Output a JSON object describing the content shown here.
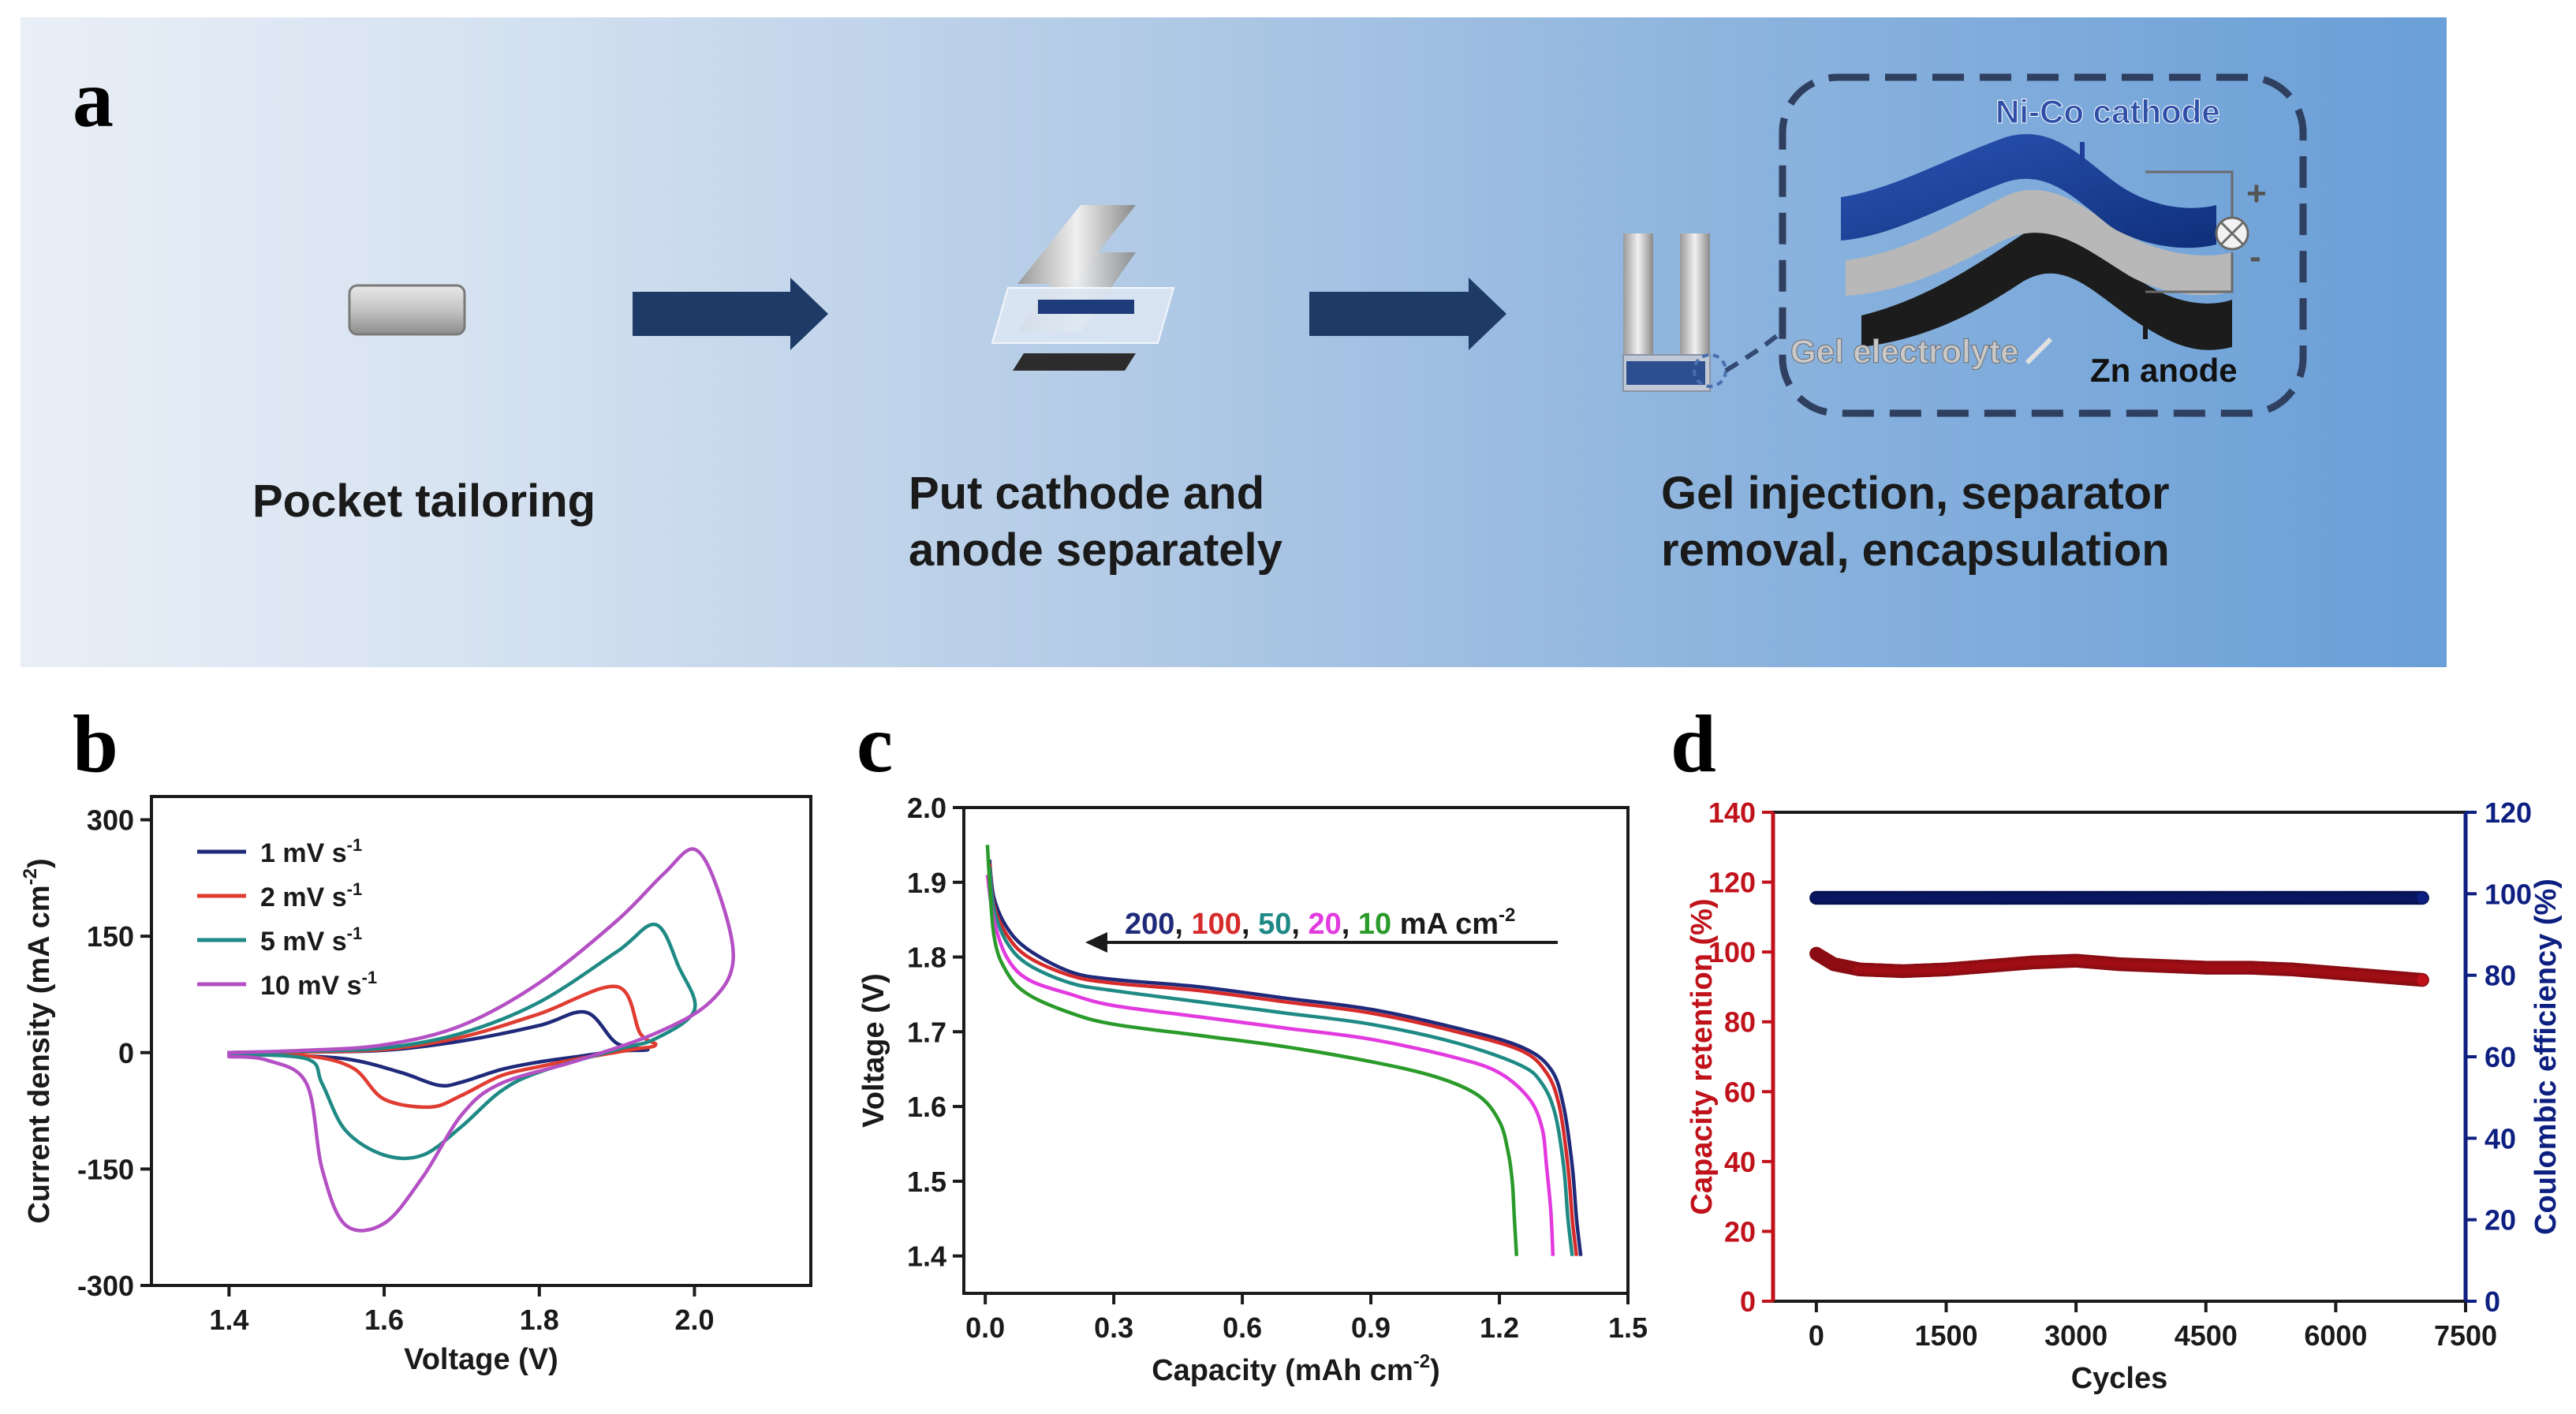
{
  "panels": {
    "a": "a",
    "b": "b",
    "c": "c",
    "d": "d"
  },
  "schematic": {
    "steps": [
      "Pocket tailoring",
      "Put cathode and",
      "anode separately",
      "Gel injection, separator",
      "removal, encapsulation"
    ],
    "labels": {
      "cathode": "Ni-Co cathode",
      "gel": "Gel electrolyte",
      "anode": "Zn anode",
      "plus": "+",
      "minus": "-"
    }
  },
  "chart_data": [
    {
      "id": "b",
      "type": "line",
      "xlabel": "Voltage (V)",
      "ylabel": "Current density (mA cm",
      "ylabel_sup": "-2",
      "ylabel_end": ")",
      "xlim": [
        1.3,
        2.15
      ],
      "ylim": [
        -300,
        330
      ],
      "xticks": [
        "1.4",
        "1.6",
        "1.8",
        "2.0"
      ],
      "xtick_values": [
        1.4,
        1.6,
        1.8,
        2.0
      ],
      "yticks": [
        "300",
        "150",
        "0",
        "-150",
        "-300"
      ],
      "ytick_values": [
        300,
        150,
        0,
        -150,
        -300
      ],
      "legend": {
        "position": "top-left"
      },
      "series": [
        {
          "name": "1 mV s",
          "sup": "-1",
          "color": "#1f2a7a",
          "x": [
            1.4,
            1.5,
            1.6,
            1.7,
            1.8,
            1.86,
            1.9,
            1.94,
            1.9,
            1.85,
            1.8,
            1.75,
            1.7,
            1.67,
            1.62,
            1.55,
            1.45,
            1.4
          ],
          "y": [
            0,
            1,
            3,
            15,
            35,
            52,
            12,
            4,
            2,
            -5,
            -12,
            -22,
            -38,
            -42,
            -25,
            -8,
            -2,
            0
          ]
        },
        {
          "name": "2 mV s",
          "sup": "-1",
          "color": "#e03c31",
          "x": [
            1.4,
            1.5,
            1.6,
            1.7,
            1.8,
            1.9,
            1.93,
            1.95,
            1.92,
            1.85,
            1.8,
            1.75,
            1.7,
            1.66,
            1.6,
            1.56,
            1.5,
            1.4
          ],
          "y": [
            0,
            1,
            4,
            20,
            50,
            85,
            25,
            10,
            4,
            -8,
            -18,
            -30,
            -55,
            -70,
            -60,
            -20,
            -4,
            0
          ]
        },
        {
          "name": "5 mV s",
          "sup": "-1",
          "color": "#1f8a85",
          "x": [
            1.4,
            1.5,
            1.6,
            1.7,
            1.8,
            1.9,
            1.95,
            1.98,
            2.0,
            1.95,
            1.9,
            1.8,
            1.75,
            1.7,
            1.65,
            1.6,
            1.55,
            1.52,
            1.5,
            1.4
          ],
          "y": [
            0,
            2,
            6,
            25,
            65,
            130,
            165,
            110,
            55,
            18,
            4,
            -25,
            -50,
            -95,
            -132,
            -132,
            -100,
            -40,
            -8,
            -2
          ]
        },
        {
          "name": "10 mV s",
          "sup": "-1",
          "color": "#b450c4",
          "x": [
            1.4,
            1.5,
            1.6,
            1.7,
            1.8,
            1.9,
            1.96,
            2.0,
            2.03,
            2.05,
            2.02,
            1.95,
            1.85,
            1.75,
            1.7,
            1.65,
            1.6,
            1.55,
            1.52,
            1.5,
            1.45,
            1.4
          ],
          "y": [
            0,
            3,
            10,
            35,
            90,
            170,
            230,
            262,
            210,
            120,
            65,
            25,
            -10,
            -40,
            -80,
            -160,
            -220,
            -222,
            -150,
            -40,
            -10,
            -5
          ]
        }
      ]
    },
    {
      "id": "c",
      "type": "line",
      "xlabel": "Capacity (mAh cm",
      "xlabel_sup": "-2",
      "xlabel_end": ")",
      "ylabel": "Voltage (V)",
      "xlim": [
        -0.05,
        1.5
      ],
      "ylim": [
        1.35,
        2.0
      ],
      "xticks": [
        "0.0",
        "0.3",
        "0.6",
        "0.9",
        "1.2",
        "1.5"
      ],
      "xtick_values": [
        0,
        0.3,
        0.6,
        0.9,
        1.2,
        1.5
      ],
      "yticks": [
        "2.0",
        "1.9",
        "1.8",
        "1.7",
        "1.6",
        "1.5",
        "1.4"
      ],
      "ytick_values": [
        2.0,
        1.9,
        1.8,
        1.7,
        1.6,
        1.5,
        1.4
      ],
      "annotation": {
        "parts": [
          "200",
          ", ",
          "100",
          ", ",
          "50",
          ", ",
          "20",
          ", ",
          "10",
          " mA cm"
        ],
        "sup": "-2"
      },
      "series": [
        {
          "name": "200",
          "color": "#1f2a7a",
          "x": [
            0.01,
            0.02,
            0.05,
            0.1,
            0.2,
            0.3,
            0.5,
            0.7,
            0.9,
            1.1,
            1.25,
            1.32,
            1.35,
            1.37,
            1.38,
            1.39
          ],
          "y": [
            1.93,
            1.88,
            1.84,
            1.81,
            1.78,
            1.77,
            1.76,
            1.745,
            1.73,
            1.705,
            1.68,
            1.65,
            1.6,
            1.52,
            1.45,
            1.4
          ]
        },
        {
          "name": "100",
          "color": "#d62b2b",
          "x": [
            0.01,
            0.02,
            0.05,
            0.1,
            0.2,
            0.3,
            0.5,
            0.7,
            0.9,
            1.1,
            1.25,
            1.31,
            1.34,
            1.36,
            1.37,
            1.38
          ],
          "y": [
            1.925,
            1.87,
            1.83,
            1.8,
            1.775,
            1.765,
            1.755,
            1.74,
            1.725,
            1.7,
            1.675,
            1.645,
            1.6,
            1.52,
            1.45,
            1.4
          ]
        },
        {
          "name": "50",
          "color": "#1f8a85",
          "x": [
            0.01,
            0.02,
            0.05,
            0.1,
            0.2,
            0.3,
            0.5,
            0.7,
            0.9,
            1.1,
            1.25,
            1.3,
            1.33,
            1.35,
            1.36,
            1.37
          ],
          "y": [
            1.92,
            1.865,
            1.82,
            1.79,
            1.765,
            1.755,
            1.74,
            1.725,
            1.71,
            1.685,
            1.655,
            1.63,
            1.59,
            1.52,
            1.45,
            1.4
          ]
        },
        {
          "name": "20",
          "color": "#e33ae0",
          "x": [
            0.005,
            0.02,
            0.05,
            0.1,
            0.2,
            0.3,
            0.5,
            0.7,
            0.9,
            1.1,
            1.2,
            1.27,
            1.3,
            1.31,
            1.32,
            1.325
          ],
          "y": [
            1.91,
            1.85,
            1.8,
            1.77,
            1.75,
            1.735,
            1.72,
            1.705,
            1.69,
            1.665,
            1.645,
            1.61,
            1.57,
            1.52,
            1.46,
            1.4
          ]
        },
        {
          "name": "10",
          "color": "#2a9a2a",
          "x": [
            0.005,
            0.02,
            0.05,
            0.1,
            0.2,
            0.3,
            0.5,
            0.7,
            0.9,
            1.05,
            1.15,
            1.2,
            1.22,
            1.23,
            1.235,
            1.24
          ],
          "y": [
            1.95,
            1.83,
            1.78,
            1.75,
            1.725,
            1.71,
            1.695,
            1.68,
            1.66,
            1.64,
            1.615,
            1.58,
            1.54,
            1.5,
            1.45,
            1.4
          ]
        }
      ]
    },
    {
      "id": "d",
      "type": "scatter",
      "xlabel": "Cycles",
      "ylabel": "Capacity retention (%)",
      "y2label": "Coulombic efficiency (%)",
      "xlim": [
        -500,
        7500
      ],
      "ylim": [
        0,
        140
      ],
      "y2lim": [
        0,
        120
      ],
      "xticks": [
        "0",
        "1500",
        "3000",
        "4500",
        "6000",
        "7500"
      ],
      "xtick_values": [
        0,
        1500,
        3000,
        4500,
        6000,
        7500
      ],
      "yticks": [
        "0",
        "20",
        "40",
        "60",
        "80",
        "100",
        "120",
        "140"
      ],
      "ytick_values": [
        0,
        20,
        40,
        60,
        80,
        100,
        120,
        140
      ],
      "y2ticks": [
        "0",
        "20",
        "40",
        "60",
        "80",
        "100",
        "120"
      ],
      "y2tick_values": [
        0,
        20,
        40,
        60,
        80,
        100,
        120
      ],
      "series": [
        {
          "name": "Capacity retention",
          "axis": "left",
          "color": "#c0121a",
          "x": [
            0,
            200,
            500,
            1000,
            1500,
            2000,
            2500,
            3000,
            3500,
            4000,
            4500,
            5000,
            5500,
            6000,
            6500,
            7000
          ],
          "y": [
            99.5,
            96.5,
            95,
            94.5,
            95,
            96,
            97,
            97.5,
            96.5,
            96,
            95.5,
            95.5,
            95,
            94,
            93,
            92
          ]
        },
        {
          "name": "Coulombic efficiency",
          "axis": "right",
          "color": "#0d1f80",
          "x": [
            0,
            500,
            1000,
            1500,
            2000,
            2500,
            3000,
            3500,
            4000,
            4500,
            5000,
            5500,
            6000,
            6500,
            7000
          ],
          "y": [
            99,
            99,
            99,
            99,
            99,
            99,
            99,
            99,
            99,
            99,
            99,
            99,
            99,
            99,
            99
          ]
        }
      ]
    }
  ]
}
